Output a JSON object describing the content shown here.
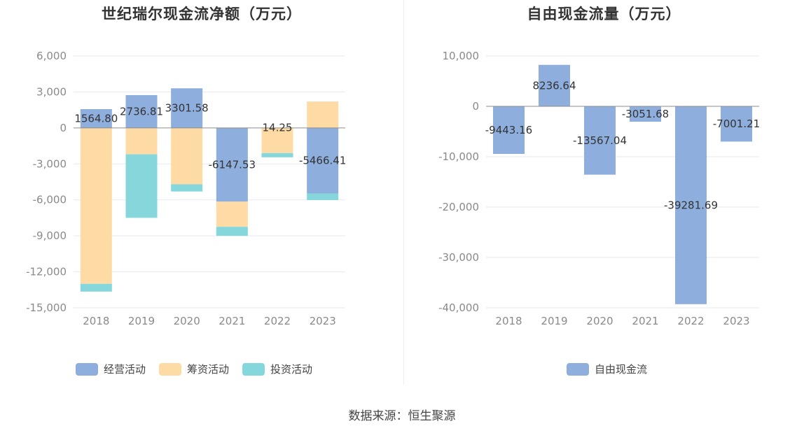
{
  "source": "数据来源：恒生聚源",
  "charts": [
    {
      "id": "left",
      "title": "世纪瑞尔现金流净额（万元）",
      "chart_data": {
        "type": "bar",
        "stacked": true,
        "title": "世纪瑞尔现金流净额（万元）",
        "categories": [
          "2018",
          "2019",
          "2020",
          "2021",
          "2022",
          "2023"
        ],
        "yticks": [
          6000,
          3000,
          0,
          -3000,
          -6000,
          -9000,
          -12000,
          -15000
        ],
        "ytick_labels": [
          "6,000",
          "3,000",
          "0",
          "-3,000",
          "-6,000",
          "-9,000",
          "-12,000",
          "-15,000"
        ],
        "ylim": [
          -15000,
          6000
        ],
        "grid": true,
        "legend": "bottom",
        "series": [
          {
            "name": "经营活动",
            "color": "#8eaedd",
            "values": [
              1564.8,
              2736.81,
              3301.58,
              -6147.53,
              14.25,
              -5466.41
            ]
          },
          {
            "name": "筹资活动",
            "color": "#fedba4",
            "values": [
              -13000,
              -2200,
              -4700,
              -2100,
              -2100,
              2200
            ]
          },
          {
            "name": "投资活动",
            "color": "#86d7dc",
            "values": [
              -650,
              -5300,
              -600,
              -750,
              -350,
              -550
            ]
          }
        ],
        "data_labels": [
          "1564.80",
          "2736.81",
          "3301.58",
          "-6147.53",
          "14.25",
          "-5466.41"
        ]
      }
    },
    {
      "id": "right",
      "title": "自由现金流量（万元）",
      "chart_data": {
        "type": "bar",
        "title": "自由现金流量（万元）",
        "categories": [
          "2018",
          "2019",
          "2020",
          "2021",
          "2022",
          "2023"
        ],
        "yticks": [
          10000,
          0,
          -10000,
          -20000,
          -30000,
          -40000
        ],
        "ytick_labels": [
          "10,000",
          "0",
          "-10,000",
          "-20,000",
          "-30,000",
          "-40,000"
        ],
        "ylim": [
          -40000,
          10000
        ],
        "grid": true,
        "legend": "bottom",
        "series": [
          {
            "name": "自由现金流",
            "color": "#8eaedd",
            "values": [
              -9443.16,
              8236.64,
              -13567.04,
              -3051.68,
              -39281.69,
              -7001.21
            ]
          }
        ],
        "data_labels": [
          "-9443.16",
          "8236.64",
          "-13567.04",
          "-3051.68",
          "-39281.69",
          "-7001.21"
        ]
      }
    }
  ]
}
